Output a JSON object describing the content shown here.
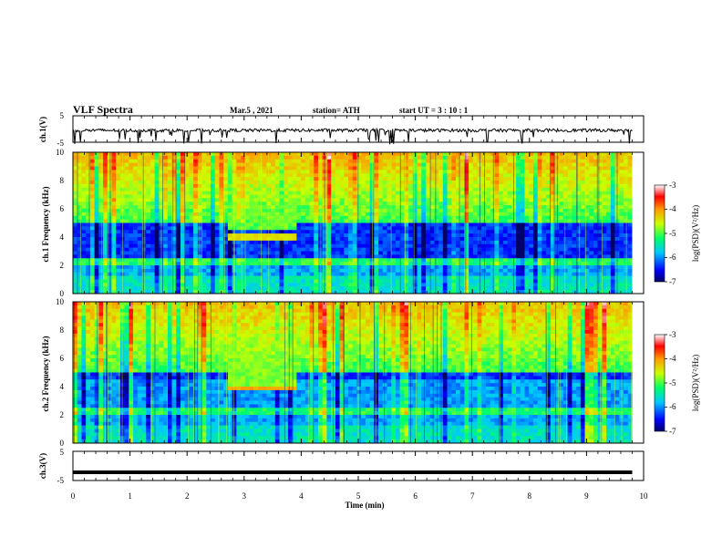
{
  "header": {
    "title": "VLF Spectra",
    "date": "Mar.5 , 2021",
    "station": "station= ATH",
    "start": "start UT = 3 : 10 : 1"
  },
  "chart_data": [
    {
      "type": "line",
      "title": "",
      "xlabel": "",
      "ylabel": "ch.1(V)",
      "xlim": [
        0,
        10
      ],
      "ylim": [
        -5,
        5
      ],
      "yticks": [
        "5",
        "-5"
      ],
      "series": [
        {
          "values_note": "",
          "x": [
            0,
            9.8
          ],
          "y": [
            0,
            0
          ]
        }
      ],
      "noise_level": -0.5
    },
    {
      "type": "heatmap",
      "ylabel": "ch.1 Frequency (kHz)",
      "xlim": [
        0,
        10
      ],
      "ylim": [
        0,
        10
      ],
      "yticks": [
        "0",
        "2",
        "4",
        "6",
        "8",
        "10"
      ],
      "data_end_min": 9.8,
      "colorbar": {
        "label": "log(PSD)(V²/Hz)",
        "range": [
          -7,
          -3
        ],
        "ticks": [
          "-3",
          "-4",
          "-5",
          "-6",
          "-7"
        ]
      },
      "features": [
        {
          "type": "transmitter_band",
          "t_start": 2.7,
          "t_end": 3.95,
          "f_low": 3.7,
          "f_high": 4.2,
          "log_psd": -4.5
        }
      ]
    },
    {
      "type": "heatmap",
      "ylabel": "ch.2 Frequency (kHz)",
      "xlim": [
        0,
        10
      ],
      "ylim": [
        0,
        10
      ],
      "yticks": [
        "0",
        "2",
        "4",
        "6",
        "8",
        "10"
      ],
      "data_end_min": 9.8,
      "colorbar": {
        "label": "log(PSD)(V²/Hz)",
        "range": [
          -7,
          -3
        ],
        "ticks": [
          "-3",
          "-4",
          "-5",
          "-6",
          "-7"
        ]
      },
      "features": [
        {
          "type": "transmitter_band",
          "t_start": 2.7,
          "t_end": 3.95,
          "f_low": 3.7,
          "f_high": 4.1,
          "log_psd": -4.2
        }
      ]
    },
    {
      "type": "line",
      "ylabel": "ch.3(V)",
      "xlim": [
        0,
        10
      ],
      "ylim": [
        -5,
        5
      ],
      "yticks": [
        "5",
        "-5"
      ],
      "xticks": [
        "0",
        "1",
        "2",
        "3",
        "4",
        "5",
        "6",
        "7",
        "8",
        "9",
        "10"
      ],
      "xlabel": "Time (min)",
      "series": [
        {
          "x": [
            0,
            9.8
          ],
          "y": [
            -2.2,
            -2.2
          ]
        }
      ]
    }
  ]
}
